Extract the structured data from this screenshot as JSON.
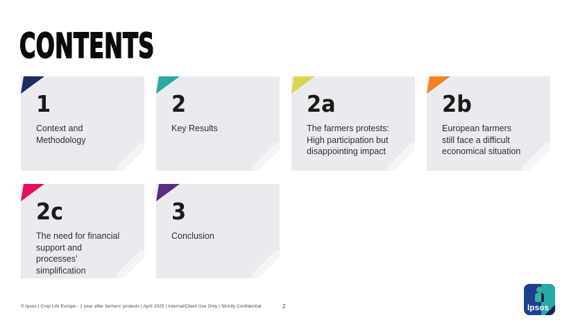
{
  "slide": {
    "title": "CONTENTS",
    "page_number": "2",
    "footer": "© Ipsos | Crop Life Europe - 1 year after farmers’ protests | April 2025 | Internal/Client Use Only | Strictly Confidential"
  },
  "cards": [
    {
      "number": "1",
      "label": "Context and\nMethodology",
      "accent_color": "#1e2b63"
    },
    {
      "number": "2",
      "label": "Key Results",
      "accent_color": "#2aa8a2"
    },
    {
      "number": "2a",
      "label": "The farmers protests:\nHigh participation but\ndisappointing impact",
      "accent_color": "#ddd44e"
    },
    {
      "number": "2b",
      "label": "European farmers\nstill face a difficult\neconomical situation",
      "accent_color": "#f58220"
    },
    {
      "number": "2c",
      "label": "The need for financial\nsupport and\nprocesses’\nsimplification",
      "accent_color": "#e60c5e"
    },
    {
      "number": "3",
      "label": "Conclusion",
      "accent_color": "#5b2c82"
    }
  ],
  "logo": {
    "text": "Ipsos",
    "blue": "#1d3e90",
    "teal": "#2aa8a2",
    "navy": "#16255c",
    "figure_color": "#35b39a"
  }
}
